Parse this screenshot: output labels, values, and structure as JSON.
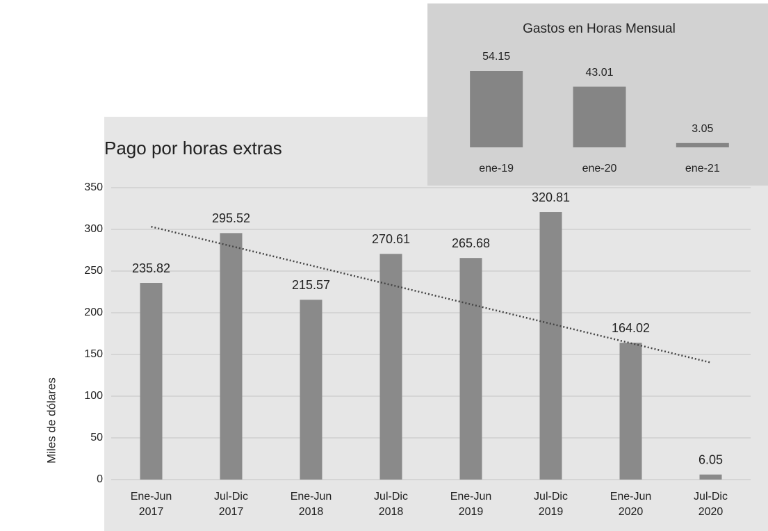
{
  "chart_data": [
    {
      "type": "bar",
      "title": "Pago por horas extras",
      "y_label": "Miles de dólares",
      "categories": [
        "Ene-Jun\n2017",
        "Jul-Dic\n2017",
        "Ene-Jun\n2018",
        "Jul-Dic\n2018",
        "Ene-Jun\n2019",
        "Jul-Dic\n2019",
        "Ene-Jun\n2020",
        "Jul-Dic\n2020"
      ],
      "values": [
        235.82,
        295.52,
        215.57,
        270.61,
        265.68,
        320.81,
        164.02,
        6.05
      ],
      "color": "#8a8a8a",
      "ylim": [
        0,
        350
      ],
      "yticks": [
        0,
        50,
        100,
        150,
        200,
        250,
        300,
        350
      ],
      "grid": true,
      "trendline": true
    },
    {
      "type": "bar",
      "title": "Gastos en Horas Mensual",
      "categories": [
        "ene-19",
        "ene-20",
        "ene-21"
      ],
      "values": [
        54.15,
        43.01,
        3.05
      ],
      "color": "#858585"
    }
  ]
}
